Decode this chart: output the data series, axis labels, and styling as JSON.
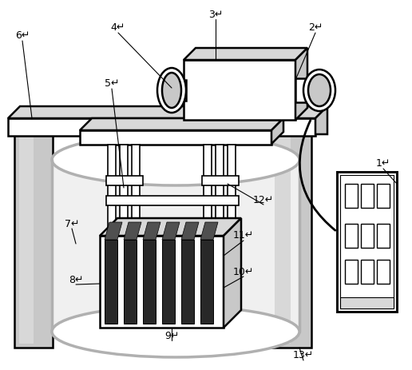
{
  "bg": "#ffffff",
  "lc": "#000000",
  "gray1": "#c8c8c8",
  "gray2": "#d8d8d8",
  "gray3": "#b0b0b0",
  "dark": "#282828",
  "lw_main": 1.8,
  "lw_thin": 0.9,
  "fs": 9
}
